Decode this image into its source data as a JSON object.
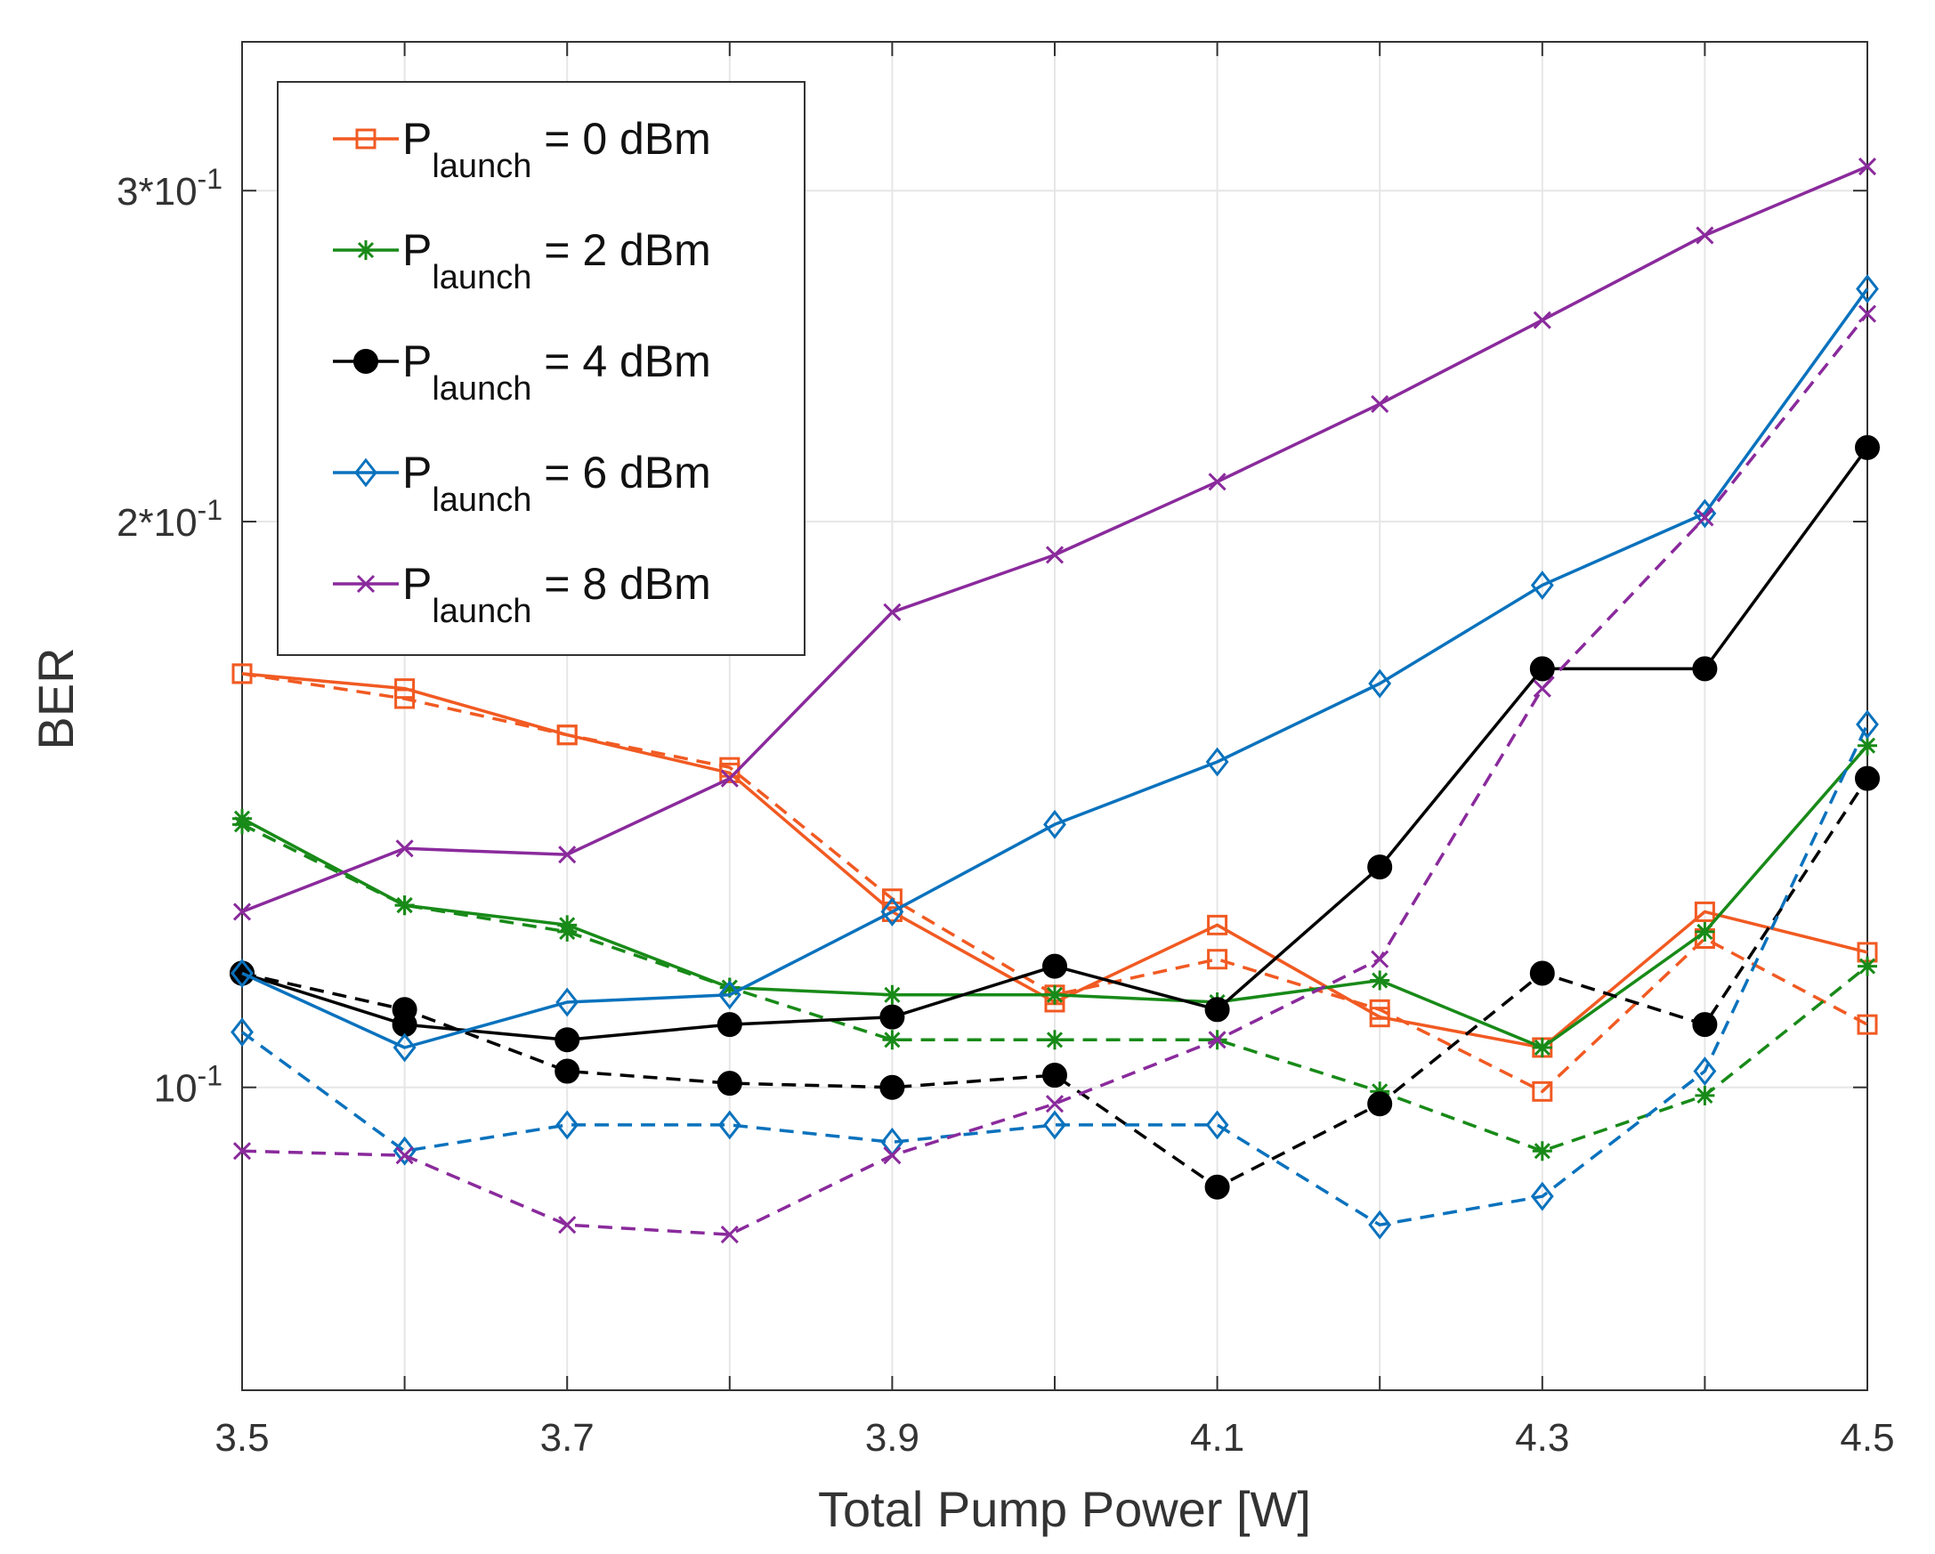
{
  "chart_data": {
    "type": "line",
    "title": "",
    "xlabel": "Total Pump Power [W]",
    "ylabel": "BER",
    "yscale": "log",
    "xlim": [
      3.5,
      4.5
    ],
    "ylim": [
      0.069,
      0.36
    ],
    "grid": true,
    "legend_position": "top-left",
    "x": [
      3.5,
      3.6,
      3.7,
      3.8,
      3.9,
      4.0,
      4.1,
      4.2,
      4.3,
      4.4,
      4.5
    ],
    "xticks": [
      3.5,
      3.7,
      3.9,
      4.1,
      4.3,
      4.5
    ],
    "xtick_labels": [
      "3.5",
      "3.7",
      "3.9",
      "4.1",
      "4.3",
      "4.5"
    ],
    "yticks": [
      {
        "value": 0.1,
        "base": "10",
        "exp": "-1"
      },
      {
        "value": 0.2,
        "base": "2*10",
        "exp": "-1"
      },
      {
        "value": 0.3,
        "base": "3*10",
        "exp": "-1"
      }
    ],
    "series": [
      {
        "key": "p0",
        "name": "P launch = 0 dBm",
        "legend_main": "P",
        "legend_sub": "launch",
        "legend_rest": " = 0 dBm",
        "color": "#F15A22",
        "marker": "square",
        "style": "solid",
        "values": [
          0.166,
          0.163,
          0.154,
          0.147,
          0.124,
          0.111,
          0.122,
          0.109,
          0.105,
          0.124,
          0.118
        ]
      },
      {
        "key": "p0d",
        "name": "P launch = 0 dBm (dashed)",
        "color": "#F15A22",
        "marker": "square",
        "style": "dashed",
        "values": [
          0.166,
          0.161,
          0.154,
          0.148,
          0.126,
          0.112,
          0.117,
          0.11,
          0.0995,
          0.12,
          0.108
        ]
      },
      {
        "key": "p2",
        "name": "P launch = 2 dBm",
        "legend_main": "P",
        "legend_sub": "launch",
        "legend_rest": " = 2 dBm",
        "color": "#188A18",
        "marker": "star",
        "style": "solid",
        "values": [
          0.139,
          0.125,
          0.122,
          0.113,
          0.112,
          0.112,
          0.111,
          0.114,
          0.105,
          0.121,
          0.152
        ]
      },
      {
        "key": "p2d",
        "name": "P launch = 2 dBm (dashed)",
        "color": "#188A18",
        "marker": "star",
        "style": "dashed",
        "values": [
          0.138,
          0.125,
          0.121,
          0.113,
          0.106,
          0.106,
          0.106,
          0.0995,
          0.0925,
          0.099,
          0.116
        ]
      },
      {
        "key": "p4",
        "name": "P launch = 4 dBm",
        "legend_main": "P",
        "legend_sub": "launch",
        "legend_rest": " = 4 dBm",
        "color": "#000000",
        "marker": "circle",
        "style": "solid",
        "values": [
          0.115,
          0.108,
          0.106,
          0.108,
          0.109,
          0.116,
          0.11,
          0.131,
          0.167,
          0.167,
          0.219
        ]
      },
      {
        "key": "p4d",
        "name": "P launch = 4 dBm (dashed)",
        "color": "#000000",
        "marker": "circle",
        "style": "dashed",
        "values": [
          0.115,
          0.11,
          0.102,
          0.1005,
          0.1,
          0.1015,
          0.0885,
          0.098,
          0.115,
          0.108,
          0.146
        ]
      },
      {
        "key": "p6",
        "name": "P launch = 6 dBm",
        "legend_main": "P",
        "legend_sub": "launch",
        "legend_rest": " = 6 dBm",
        "color": "#0A72BD",
        "marker": "diamond",
        "style": "solid",
        "values": [
          0.115,
          0.105,
          0.111,
          0.112,
          0.124,
          0.138,
          0.149,
          0.164,
          0.185,
          0.202,
          0.266
        ]
      },
      {
        "key": "p6d",
        "name": "P launch = 6 dBm (dashed)",
        "color": "#0A72BD",
        "marker": "diamond",
        "style": "dashed",
        "values": [
          0.107,
          0.0925,
          0.0955,
          0.0955,
          0.0935,
          0.0955,
          0.0955,
          0.0845,
          0.0875,
          0.102,
          0.156
        ]
      },
      {
        "key": "p8",
        "name": "P launch = 8 dBm",
        "legend_main": "P",
        "legend_sub": "launch",
        "legend_rest": " = 8 dBm",
        "color": "#8A2A9C",
        "marker": "x",
        "style": "solid",
        "values": [
          0.124,
          0.134,
          0.133,
          0.146,
          0.179,
          0.192,
          0.21,
          0.231,
          0.256,
          0.284,
          0.309
        ]
      },
      {
        "key": "p8d",
        "name": "P launch = 8 dBm (dashed)",
        "color": "#8A2A9C",
        "marker": "x",
        "style": "dashed",
        "values": [
          0.0925,
          0.092,
          0.0845,
          0.0835,
          0.092,
          0.098,
          0.106,
          0.117,
          0.163,
          0.201,
          0.258
        ]
      }
    ],
    "legend_entries": [
      {
        "series": "p0",
        "main": "P",
        "sub": "launch",
        "rest": " = 0 dBm"
      },
      {
        "series": "p2",
        "main": "P",
        "sub": "launch",
        "rest": " = 2 dBm"
      },
      {
        "series": "p4",
        "main": "P",
        "sub": "launch",
        "rest": " = 4 dBm"
      },
      {
        "series": "p6",
        "main": "P",
        "sub": "launch",
        "rest": " = 6 dBm"
      },
      {
        "series": "p8",
        "main": "P",
        "sub": "launch",
        "rest": " = 8 dBm"
      }
    ]
  }
}
